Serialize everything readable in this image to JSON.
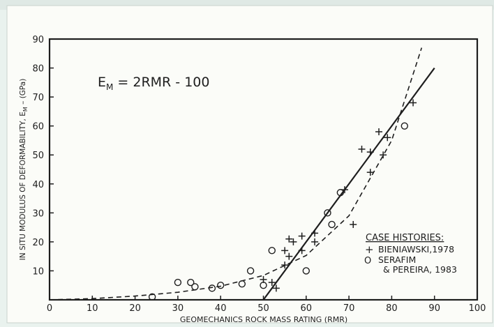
{
  "chart_data": {
    "type": "scatter",
    "xlabel": "GEOMECHANICS ROCK MASS RATING (RMR)",
    "ylabel": "IN SITU MODULUS OF DEFORMABILITY, E",
    "ylabel_sub": "M",
    "ylabel_unit": " – (GPa)",
    "xlim": [
      0,
      100
    ],
    "ylim": [
      0,
      90
    ],
    "x_ticks": [
      0,
      10,
      20,
      30,
      40,
      50,
      60,
      70,
      80,
      90,
      100
    ],
    "y_ticks": [
      10,
      20,
      30,
      40,
      50,
      60,
      70,
      80,
      90
    ],
    "equation": {
      "lhs": "E",
      "sub": "M",
      "rhs": " = 2RMR - 100"
    },
    "legend": {
      "title": "CASE HISTORIES:",
      "entries": [
        {
          "marker": "+",
          "label": "BIENIAWSKI,1978"
        },
        {
          "marker": "O",
          "label": "SERAFIM"
        },
        {
          "marker": "",
          "label": "& PEREIRA, 1983"
        }
      ],
      "position": "bottom-right"
    },
    "series": [
      {
        "marker": "plus",
        "points": [
          [
            50,
            7
          ],
          [
            52,
            6
          ],
          [
            53,
            4
          ],
          [
            55,
            17
          ],
          [
            55,
            12
          ],
          [
            56,
            21
          ],
          [
            56,
            15
          ],
          [
            57,
            20
          ],
          [
            59,
            17
          ],
          [
            59,
            22
          ],
          [
            62,
            20
          ],
          [
            62,
            23
          ],
          [
            69,
            38
          ],
          [
            71,
            26
          ],
          [
            73,
            52
          ],
          [
            75,
            51
          ],
          [
            75,
            44
          ],
          [
            77,
            58
          ],
          [
            78,
            50
          ],
          [
            79,
            56
          ],
          [
            85,
            68
          ]
        ]
      },
      {
        "marker": "circle",
        "points": [
          [
            24,
            1
          ],
          [
            30,
            6
          ],
          [
            33,
            6
          ],
          [
            34,
            4.5
          ],
          [
            38,
            4
          ],
          [
            40,
            5
          ],
          [
            45,
            5.5
          ],
          [
            47,
            10
          ],
          [
            50,
            5
          ],
          [
            52,
            17
          ],
          [
            60,
            10
          ],
          [
            65,
            30
          ],
          [
            66,
            26
          ],
          [
            68,
            37
          ],
          [
            83,
            60
          ]
        ]
      }
    ],
    "fit_line": {
      "style": "solid",
      "x": [
        50,
        90
      ],
      "y": [
        0,
        80
      ]
    },
    "fit_curve": {
      "style": "dashed",
      "x": [
        0,
        10,
        20,
        30,
        40,
        50,
        60,
        70,
        80,
        87
      ],
      "y": [
        0,
        0.4,
        1.3,
        2.6,
        4.7,
        8.4,
        15.3,
        29,
        55,
        87
      ]
    }
  }
}
